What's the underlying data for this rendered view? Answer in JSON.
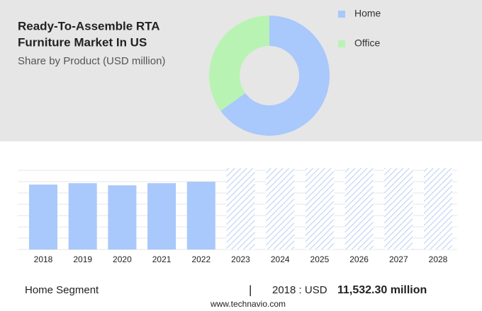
{
  "chart_data": [
    {
      "type": "pie",
      "title": [
        "Ready-To-Assemble RTA",
        "Furniture Market In US"
      ],
      "subtitle": "Share by Product (USD million)",
      "donut": true,
      "categories": [
        "Home",
        "Office"
      ],
      "values": [
        65,
        35
      ],
      "colors": [
        "#a9c8fb",
        "#b9f3b3"
      ]
    },
    {
      "type": "bar",
      "categories": [
        "2018",
        "2019",
        "2020",
        "2021",
        "2022",
        "2023",
        "2024",
        "2025",
        "2026",
        "2027",
        "2028"
      ],
      "values": [
        11532.3,
        11783,
        11407,
        11783,
        12034,
        null,
        null,
        null,
        null,
        null,
        null
      ],
      "color": "#a9c8fb",
      "forecast_color": "#b9cdf5",
      "grid": true
    }
  ],
  "footer": {
    "segment": "Home Segment",
    "separator": "|",
    "year_currency": "2018 : USD",
    "value": "11,532.30 million",
    "source": "www.technavio.com"
  }
}
